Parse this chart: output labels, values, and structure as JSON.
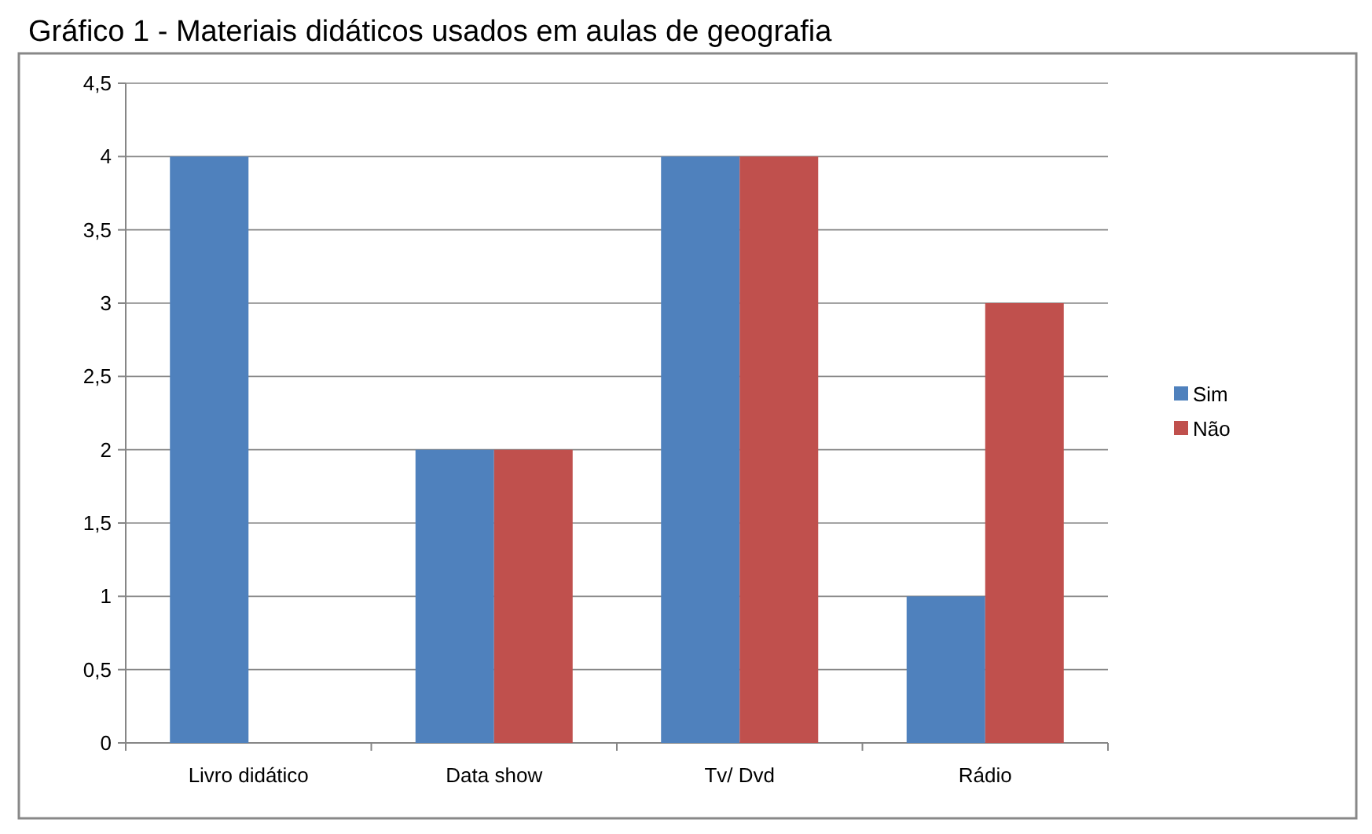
{
  "chart_data": {
    "type": "bar",
    "title": "Gráfico 1 - Materiais didáticos usados em aulas de geografia",
    "categories": [
      "Livro didático",
      "Data show",
      "Tv/ Dvd",
      "Rádio"
    ],
    "series": [
      {
        "name": "Sim",
        "color": "#4f81bd",
        "values": [
          4,
          2,
          4,
          1
        ]
      },
      {
        "name": "Não",
        "color": "#c0504d",
        "values": [
          0,
          2,
          4,
          3
        ]
      }
    ],
    "ylim": [
      0,
      4.5
    ],
    "yticks": [
      {
        "value": 0,
        "label": "0"
      },
      {
        "value": 0.5,
        "label": "0,5"
      },
      {
        "value": 1,
        "label": "1"
      },
      {
        "value": 1.5,
        "label": "1,5"
      },
      {
        "value": 2,
        "label": "2"
      },
      {
        "value": 2.5,
        "label": "2,5"
      },
      {
        "value": 3,
        "label": "3"
      },
      {
        "value": 3.5,
        "label": "3,5"
      },
      {
        "value": 4,
        "label": "4"
      },
      {
        "value": 4.5,
        "label": "4,5"
      }
    ],
    "grid": "y",
    "legend": "right"
  }
}
